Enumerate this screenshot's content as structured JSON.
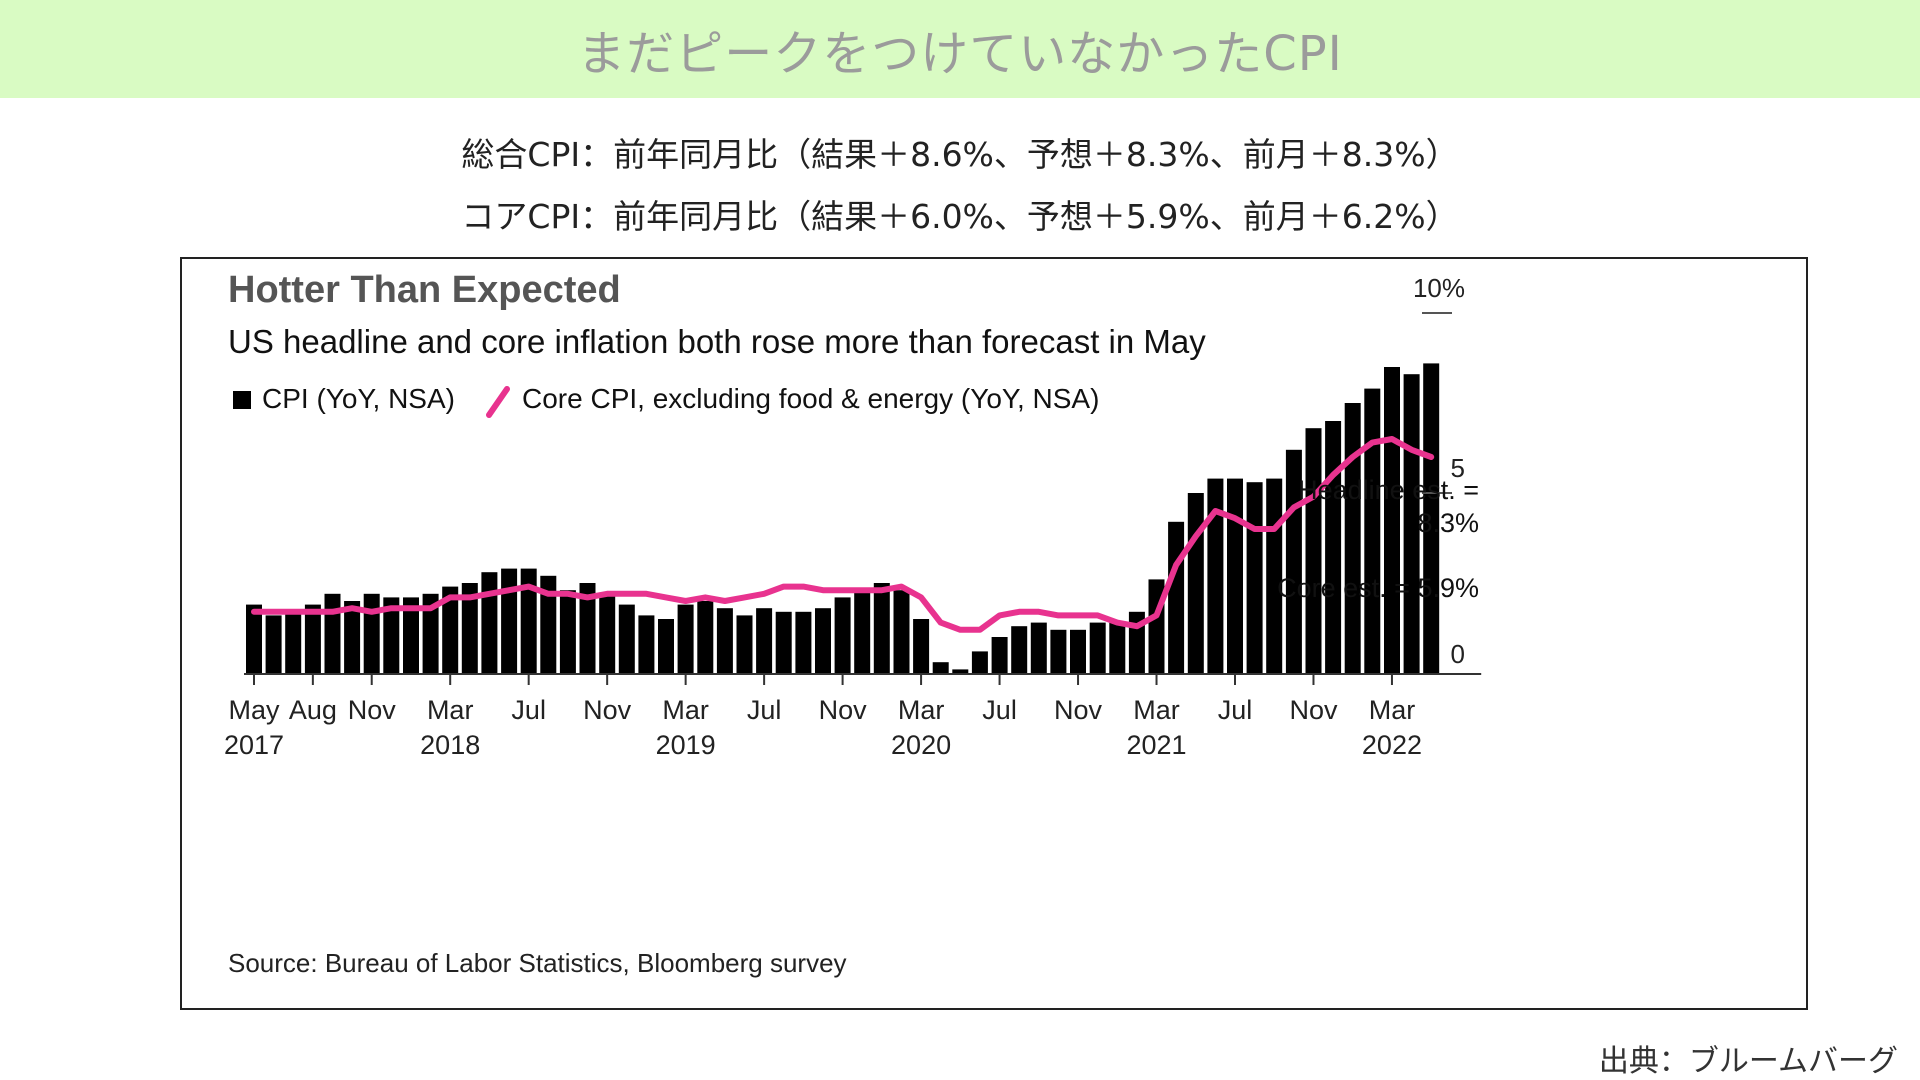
{
  "banner": {
    "title": "まだピークをつけていなかったCPI"
  },
  "summary": {
    "line1": "総合CPI：前年同月比（結果＋8.6%、予想＋8.3%、前月＋8.3%）",
    "line2": "コアCPI：前年同月比（結果＋6.0%、予想＋5.9%、前月＋6.2%）"
  },
  "footer": {
    "credit": "出典：ブルームバーグ"
  },
  "chart_data": {
    "type": "bar",
    "title": "Hotter Than Expected",
    "subtitle": "US headline and core inflation both rose more than forecast in May",
    "legend": [
      {
        "label": "CPI (YoY, NSA)",
        "color": "#000000",
        "marker": "square"
      },
      {
        "label": "Core CPI, excluding food & energy (YoY, NSA)",
        "color": "#e8338f",
        "marker": "line"
      }
    ],
    "ylim": [
      0,
      10
    ],
    "yticks": [
      {
        "value": 0,
        "label": "0"
      },
      {
        "value": 5,
        "label": "5"
      },
      {
        "value": 10,
        "label": "10%"
      }
    ],
    "axis_side": "right",
    "grid": false,
    "categories": [
      "2017-05",
      "2017-06",
      "2017-07",
      "2017-08",
      "2017-09",
      "2017-10",
      "2017-11",
      "2017-12",
      "2018-01",
      "2018-02",
      "2018-03",
      "2018-04",
      "2018-05",
      "2018-06",
      "2018-07",
      "2018-08",
      "2018-09",
      "2018-10",
      "2018-11",
      "2018-12",
      "2019-01",
      "2019-02",
      "2019-03",
      "2019-04",
      "2019-05",
      "2019-06",
      "2019-07",
      "2019-08",
      "2019-09",
      "2019-10",
      "2019-11",
      "2019-12",
      "2020-01",
      "2020-02",
      "2020-03",
      "2020-04",
      "2020-05",
      "2020-06",
      "2020-07",
      "2020-08",
      "2020-09",
      "2020-10",
      "2020-11",
      "2020-12",
      "2021-01",
      "2021-02",
      "2021-03",
      "2021-04",
      "2021-05",
      "2021-06",
      "2021-07",
      "2021-08",
      "2021-09",
      "2021-10",
      "2021-11",
      "2021-12",
      "2022-01",
      "2022-02",
      "2022-03",
      "2022-04",
      "2022-05"
    ],
    "x_tick_labels": [
      {
        "category": "2017-05",
        "month": "May",
        "year": "2017"
      },
      {
        "category": "2017-08",
        "month": "Aug",
        "year": ""
      },
      {
        "category": "2017-11",
        "month": "Nov",
        "year": ""
      },
      {
        "category": "2018-03",
        "month": "Mar",
        "year": "2018"
      },
      {
        "category": "2018-07",
        "month": "Jul",
        "year": ""
      },
      {
        "category": "2018-11",
        "month": "Nov",
        "year": ""
      },
      {
        "category": "2019-03",
        "month": "Mar",
        "year": "2019"
      },
      {
        "category": "2019-07",
        "month": "Jul",
        "year": ""
      },
      {
        "category": "2019-11",
        "month": "Nov",
        "year": ""
      },
      {
        "category": "2020-03",
        "month": "Mar",
        "year": "2020"
      },
      {
        "category": "2020-07",
        "month": "Jul",
        "year": ""
      },
      {
        "category": "2020-11",
        "month": "Nov",
        "year": ""
      },
      {
        "category": "2021-03",
        "month": "Mar",
        "year": "2021"
      },
      {
        "category": "2021-07",
        "month": "Jul",
        "year": ""
      },
      {
        "category": "2021-11",
        "month": "Nov",
        "year": ""
      },
      {
        "category": "2022-03",
        "month": "Mar",
        "year": "2022"
      }
    ],
    "series": [
      {
        "name": "CPI (YoY, NSA)",
        "kind": "bar",
        "color": "#000000",
        "values": [
          1.9,
          1.6,
          1.7,
          1.9,
          2.2,
          2.0,
          2.2,
          2.1,
          2.1,
          2.2,
          2.4,
          2.5,
          2.8,
          2.9,
          2.9,
          2.7,
          2.3,
          2.5,
          2.2,
          1.9,
          1.6,
          1.5,
          1.9,
          2.0,
          1.8,
          1.6,
          1.8,
          1.7,
          1.7,
          1.8,
          2.1,
          2.3,
          2.5,
          2.3,
          1.5,
          0.3,
          0.1,
          0.6,
          1.0,
          1.3,
          1.4,
          1.2,
          1.2,
          1.4,
          1.4,
          1.7,
          2.6,
          4.2,
          5.0,
          5.4,
          5.4,
          5.3,
          5.4,
          6.2,
          6.8,
          7.0,
          7.5,
          7.9,
          8.5,
          8.3,
          8.6
        ]
      },
      {
        "name": "Core CPI, excluding food & energy (YoY, NSA)",
        "kind": "line",
        "color": "#e8338f",
        "values": [
          1.7,
          1.7,
          1.7,
          1.7,
          1.7,
          1.8,
          1.7,
          1.8,
          1.8,
          1.8,
          2.1,
          2.1,
          2.2,
          2.3,
          2.4,
          2.2,
          2.2,
          2.1,
          2.2,
          2.2,
          2.2,
          2.1,
          2.0,
          2.1,
          2.0,
          2.1,
          2.2,
          2.4,
          2.4,
          2.3,
          2.3,
          2.3,
          2.3,
          2.4,
          2.1,
          1.4,
          1.2,
          1.2,
          1.6,
          1.7,
          1.7,
          1.6,
          1.6,
          1.6,
          1.4,
          1.3,
          1.6,
          3.0,
          3.8,
          4.5,
          4.3,
          4.0,
          4.0,
          4.6,
          4.9,
          5.5,
          6.0,
          6.4,
          6.5,
          6.2,
          6.0
        ]
      }
    ],
    "annotations": [
      {
        "text_line1": "Headline est. =",
        "text_line2": "8.3%"
      },
      {
        "text": "Core est. = 5.9%"
      }
    ],
    "source": "Source: Bureau of Labor Statistics, Bloomberg survey"
  }
}
